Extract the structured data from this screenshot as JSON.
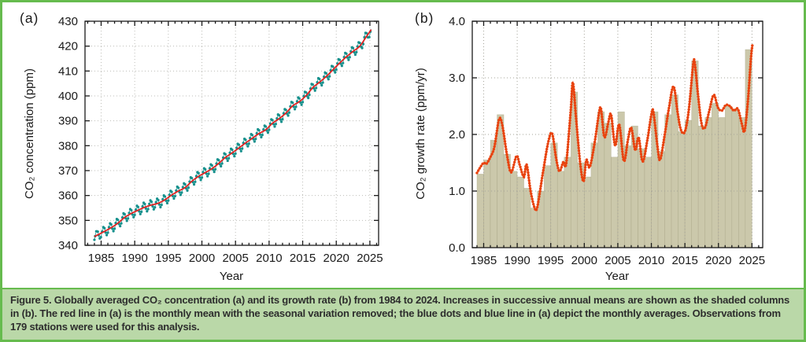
{
  "figure": {
    "caption_label": "Figure 5.",
    "caption_text": " Globally averaged CO₂ concentration (a) and its growth rate (b) from 1984 to 2024. Increases in successive annual means are shown as the shaded columns in (b). The red line in (a) is the monthly mean with the seasonal variation removed; the blue dots and blue line in (a) depict the monthly averages. Observations from 179 stations were used for this analysis.",
    "border_color": "#66bb4e",
    "caption_bg": "#bad8a8"
  },
  "chart_data": [
    {
      "id": "co2-concentration",
      "type": "line",
      "panel_label": "(a)",
      "xlabel": "Year",
      "ylabel": "CO₂ concentration (ppm)",
      "xlim": [
        1982.6,
        2026.3
      ],
      "ylim": [
        340,
        430
      ],
      "xticks": [
        1985,
        1990,
        1995,
        2000,
        2005,
        2010,
        2015,
        2020,
        2025
      ],
      "yticks": [
        340,
        350,
        360,
        370,
        380,
        390,
        400,
        410,
        420,
        430
      ],
      "grid": true,
      "series": [
        {
          "name": "monthly mean with seasonal variation removed",
          "style": "smooth-line",
          "color": "#e02322",
          "start_year": 1984,
          "annual_means": [
            344.2,
            345.6,
            347.1,
            348.9,
            351.2,
            352.8,
            354.1,
            355.3,
            356.2,
            356.9,
            358.3,
            360.2,
            361.8,
            363.2,
            365.7,
            367.7,
            369.2,
            370.8,
            372.9,
            375.3,
            377.1,
            379.1,
            381.1,
            383.0,
            384.9,
            386.4,
            389.0,
            390.9,
            393.1,
            396.0,
            397.7,
            400.1,
            403.3,
            405.5,
            407.8,
            410.5,
            413.2,
            415.7,
            417.9,
            420.0,
            423.9
          ]
        },
        {
          "name": "monthly averages",
          "style": "dots-and-line",
          "color": "#15908c",
          "derivation": "annual trend plus seasonal cycle",
          "seasonal_amplitude_ppm": 2.0,
          "seasonal_max_month_fraction": 0.36
        }
      ]
    },
    {
      "id": "co2-growth-rate",
      "type": "bar+line",
      "panel_label": "(b)",
      "xlabel": "Year",
      "ylabel": "CO₂ growth rate (ppm/yr)",
      "xlim": [
        1983.3,
        2026.6
      ],
      "ylim": [
        0,
        4
      ],
      "xticks": [
        1985,
        1990,
        1995,
        2000,
        2005,
        2010,
        2015,
        2020,
        2025
      ],
      "yticks": [
        0,
        1,
        2,
        3,
        4
      ],
      "ytick_labels": [
        "0.0",
        "1.0",
        "2.0",
        "3.0",
        "4.0"
      ],
      "grid": true,
      "columns": {
        "name": "increase in successive annual means",
        "color": "#cbc8ab",
        "start_year": 1984,
        "values": [
          1.3,
          1.55,
          1.9,
          2.35,
          1.65,
          1.35,
          1.25,
          1.05,
          0.7,
          1.0,
          1.45,
          1.85,
          1.35,
          1.6,
          2.75,
          1.5,
          1.25,
          1.85,
          2.4,
          2.2,
          1.6,
          2.4,
          1.8,
          2.15,
          1.75,
          1.6,
          2.4,
          1.7,
          2.35,
          2.7,
          2.05,
          2.25,
          3.3,
          2.15,
          2.3,
          2.55,
          2.3,
          2.5,
          2.45,
          2.3,
          3.5
        ]
      },
      "line": {
        "name": "CO₂ growth rate",
        "color": "#e8430f",
        "points": [
          [
            1984.0,
            1.32
          ],
          [
            1984.5,
            1.42
          ],
          [
            1985.0,
            1.5
          ],
          [
            1985.4,
            1.48
          ],
          [
            1986.0,
            1.6
          ],
          [
            1986.6,
            1.78
          ],
          [
            1987.3,
            2.27
          ],
          [
            1987.8,
            2.15
          ],
          [
            1988.5,
            1.62
          ],
          [
            1989.1,
            1.33
          ],
          [
            1989.9,
            1.62
          ],
          [
            1990.4,
            1.45
          ],
          [
            1991.0,
            1.25
          ],
          [
            1991.4,
            1.47
          ],
          [
            1992.0,
            1.0
          ],
          [
            1992.6,
            0.7
          ],
          [
            1993.0,
            0.72
          ],
          [
            1993.8,
            1.3
          ],
          [
            1994.6,
            1.85
          ],
          [
            1995.2,
            2.02
          ],
          [
            1995.8,
            1.58
          ],
          [
            1996.3,
            1.35
          ],
          [
            1996.9,
            1.52
          ],
          [
            1997.3,
            1.48
          ],
          [
            1998.0,
            2.45
          ],
          [
            1998.3,
            2.92
          ],
          [
            1998.8,
            2.25
          ],
          [
            1999.4,
            1.48
          ],
          [
            1999.9,
            1.17
          ],
          [
            2000.3,
            1.55
          ],
          [
            2000.8,
            1.42
          ],
          [
            2001.5,
            1.82
          ],
          [
            2002.2,
            2.38
          ],
          [
            2002.5,
            2.45
          ],
          [
            2003.0,
            1.95
          ],
          [
            2003.6,
            2.22
          ],
          [
            2004.0,
            2.35
          ],
          [
            2004.6,
            1.8
          ],
          [
            2005.2,
            2.18
          ],
          [
            2005.9,
            1.53
          ],
          [
            2006.5,
            1.9
          ],
          [
            2007.0,
            2.12
          ],
          [
            2007.6,
            1.72
          ],
          [
            2008.1,
            1.95
          ],
          [
            2008.7,
            1.52
          ],
          [
            2009.4,
            1.9
          ],
          [
            2010.0,
            2.35
          ],
          [
            2010.3,
            2.4
          ],
          [
            2010.9,
            1.8
          ],
          [
            2011.3,
            1.55
          ],
          [
            2012.0,
            2.0
          ],
          [
            2012.6,
            2.45
          ],
          [
            2013.3,
            2.85
          ],
          [
            2013.9,
            2.4
          ],
          [
            2014.4,
            2.08
          ],
          [
            2015.0,
            2.05
          ],
          [
            2015.6,
            2.45
          ],
          [
            2016.2,
            3.2
          ],
          [
            2016.45,
            3.28
          ],
          [
            2017.0,
            2.65
          ],
          [
            2017.5,
            2.18
          ],
          [
            2018.0,
            2.12
          ],
          [
            2018.6,
            2.4
          ],
          [
            2019.3,
            2.7
          ],
          [
            2019.9,
            2.48
          ],
          [
            2020.5,
            2.42
          ],
          [
            2021.1,
            2.52
          ],
          [
            2021.7,
            2.5
          ],
          [
            2022.3,
            2.42
          ],
          [
            2022.9,
            2.45
          ],
          [
            2023.5,
            2.18
          ],
          [
            2023.9,
            2.06
          ],
          [
            2024.4,
            2.6
          ],
          [
            2024.85,
            3.35
          ],
          [
            2025.05,
            3.57
          ]
        ]
      }
    }
  ]
}
